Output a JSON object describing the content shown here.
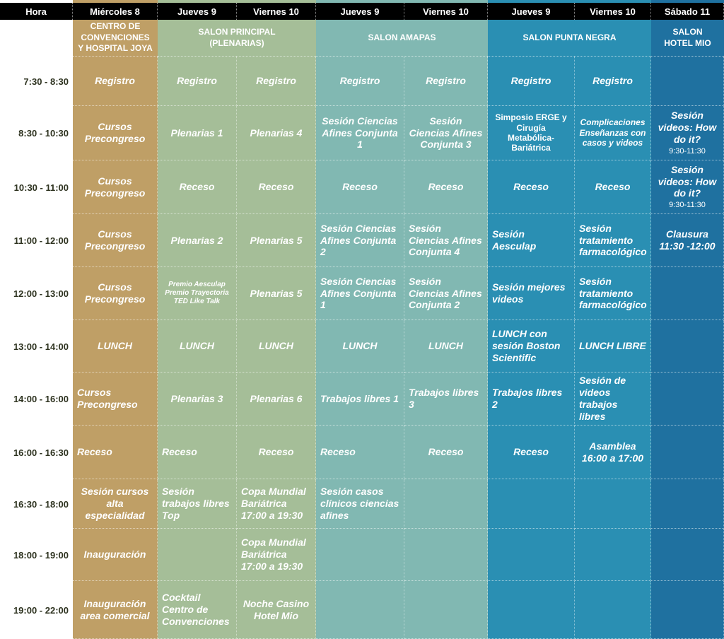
{
  "colors": {
    "header": "#000000",
    "miercoles": "#bf9f66",
    "principal": "#a5be98",
    "amapas": "#81b8b2",
    "punta_negra": "#2a8fb3",
    "hotel_mio": "#1f71a0"
  },
  "header": [
    "Hora",
    "Miércoles 8",
    "Jueves 9",
    "Viernes 10",
    "Jueves 9",
    "Viernes 10",
    "Jueves 9",
    "Viernes 10",
    "Sábado 11"
  ],
  "rooms": [
    "CENTRO DE\nCONVENCIONES\nY HOSPITAL JOYA",
    "SALON  PRINCIPAL\n(PLENARIAS)",
    "SALON AMAPAS",
    "SALON PUNTA NEGRA",
    "SALON\nHOTEL MIO"
  ],
  "rows": [
    {
      "time": "7:30 - 8:30",
      "cells": [
        {
          "t": "Registro"
        },
        {
          "t": "Registro"
        },
        {
          "t": "Registro"
        },
        {
          "t": "Registro"
        },
        {
          "t": "Registro"
        },
        {
          "t": "Registro"
        },
        {
          "t": "Registro"
        },
        {
          "t": ""
        }
      ]
    },
    {
      "time": "8:30 - 10:30",
      "cells": [
        {
          "t": "Cursos Precongreso"
        },
        {
          "t": "Plenarias 1"
        },
        {
          "t": "Plenarias 4"
        },
        {
          "t": "Sesión Ciencias Afines Conjunta 1"
        },
        {
          "t": "Sesión Ciencias Afines Conjunta 3"
        },
        {
          "t": "Simposio ERGE y Cirugía Metabólica-Bariátrica"
        },
        {
          "t": "Complicaciones Enseñanzas con casos y videos"
        },
        {
          "t": "Sesión videos: How do it?",
          "sub": "9:30-11:30"
        }
      ]
    },
    {
      "time": "10:30 - 11:00",
      "cells": [
        {
          "t": "Cursos Precongreso"
        },
        {
          "t": "Receso"
        },
        {
          "t": "Receso"
        },
        {
          "t": "Receso"
        },
        {
          "t": "Receso"
        },
        {
          "t": "Receso"
        },
        {
          "t": "Receso"
        },
        {
          "t": "Sesión videos: How do it?",
          "sub": "9:30-11:30"
        }
      ]
    },
    {
      "time": "11:00 - 12:00",
      "cells": [
        {
          "t": "Cursos Precongreso"
        },
        {
          "t": "Plenarias 2"
        },
        {
          "t": "Plenarias 5"
        },
        {
          "t": "Sesión Ciencias Afines Conjunta 2"
        },
        {
          "t": "Sesión Ciencias Afines Conjunta 4"
        },
        {
          "t": "Sesión Aesculap"
        },
        {
          "t": "Sesión tratamiento farmacológico"
        },
        {
          "t": "Clausura 11:30 -12:00"
        }
      ]
    },
    {
      "time": "12:00 - 13:00",
      "cells": [
        {
          "t": "Cursos Precongreso"
        },
        {
          "t": "Premio Aesculap Premio Trayectoria TED Like Talk"
        },
        {
          "t": "Plenarias 5"
        },
        {
          "t": "Sesión Ciencias Afines Conjunta 1"
        },
        {
          "t": "Sesión Ciencias Afines Conjunta 2"
        },
        {
          "t": "Sesión mejores videos"
        },
        {
          "t": "Sesión tratamiento farmacológico"
        },
        {
          "t": ""
        }
      ]
    },
    {
      "time": "13:00 - 14:00",
      "cells": [
        {
          "t": "LUNCH"
        },
        {
          "t": "LUNCH"
        },
        {
          "t": "LUNCH"
        },
        {
          "t": "LUNCH"
        },
        {
          "t": "LUNCH"
        },
        {
          "t": "LUNCH con sesión Boston Scientific"
        },
        {
          "t": "LUNCH LIBRE"
        },
        {
          "t": ""
        }
      ]
    },
    {
      "time": "14:00 - 16:00",
      "cells": [
        {
          "t": "Cursos Precongreso"
        },
        {
          "t": "Plenarias 3"
        },
        {
          "t": "Plenarias 6"
        },
        {
          "t": "Trabajos libres 1"
        },
        {
          "t": "Trabajos libres 3"
        },
        {
          "t": "Trabajos libres 2"
        },
        {
          "t": "Sesión de videos trabajos libres"
        },
        {
          "t": ""
        }
      ]
    },
    {
      "time": "16:00 - 16:30",
      "cells": [
        {
          "t": "Receso"
        },
        {
          "t": "Receso"
        },
        {
          "t": "Receso"
        },
        {
          "t": "Receso"
        },
        {
          "t": "Receso"
        },
        {
          "t": "Receso"
        },
        {
          "t": "Asamblea 16:00 a 17:00"
        },
        {
          "t": ""
        }
      ]
    },
    {
      "time": "16:30 - 18:00",
      "cells": [
        {
          "t": "Sesión cursos alta especialidad"
        },
        {
          "t": "Sesión trabajos libres Top"
        },
        {
          "t": "Copa Mundial Bariátrica 17:00 a 19:30"
        },
        {
          "t": "Sesión casos clínicos ciencias afines"
        },
        {
          "t": ""
        },
        {
          "t": ""
        },
        {
          "t": ""
        },
        {
          "t": ""
        }
      ]
    },
    {
      "time": "18:00 - 19:00",
      "cells": [
        {
          "t": "Inauguración"
        },
        {
          "t": ""
        },
        {
          "t": "Copa Mundial Bariátrica 17:00 a 19:30"
        },
        {
          "t": ""
        },
        {
          "t": ""
        },
        {
          "t": ""
        },
        {
          "t": ""
        },
        {
          "t": ""
        }
      ]
    },
    {
      "time": "19:00 - 22:00",
      "cells": [
        {
          "t": "Inauguración area comercial"
        },
        {
          "t": "Cocktail Centro de Convenciones"
        },
        {
          "t": "Noche Casino Hotel Mio"
        },
        {
          "t": ""
        },
        {
          "t": ""
        },
        {
          "t": ""
        },
        {
          "t": ""
        },
        {
          "t": ""
        }
      ]
    }
  ]
}
